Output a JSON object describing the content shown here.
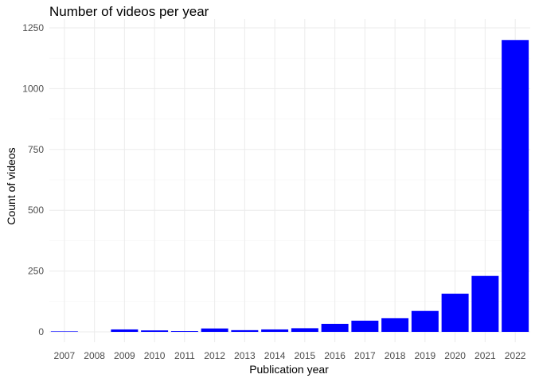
{
  "chart_data": {
    "type": "bar",
    "title": "Number of videos per year",
    "xlabel": "Publication year",
    "ylabel": "Count of videos",
    "categories": [
      "2007",
      "2008",
      "2009",
      "2010",
      "2011",
      "2012",
      "2013",
      "2014",
      "2015",
      "2016",
      "2017",
      "2018",
      "2019",
      "2020",
      "2021",
      "2022"
    ],
    "values": [
      2,
      0,
      10,
      6,
      3,
      14,
      7,
      10,
      15,
      33,
      46,
      56,
      86,
      157,
      230,
      1200
    ],
    "ylim": [
      0,
      1250
    ],
    "yticks": [
      0,
      250,
      500,
      750,
      1000,
      1250
    ],
    "ytick_labels": [
      "0",
      "250",
      "500",
      "750",
      "1000",
      "1250"
    ],
    "bar_color": "#0000ff",
    "grid": true,
    "legend": "none"
  }
}
